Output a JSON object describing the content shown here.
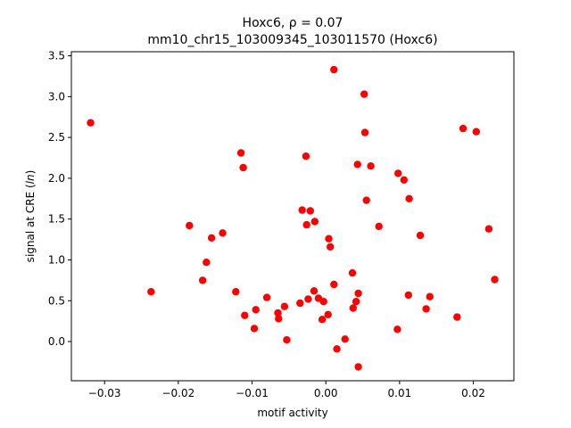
{
  "chart_data": {
    "type": "scatter",
    "title_line1": "Hoxc6, ρ = 0.07",
    "title_line2": "mm10_chr15_103009345_103011570 (Hoxc6)",
    "xlabel": "motif activity",
    "ylabel": "signal at CRE (ln)",
    "ylabel_prefix": "signal at CRE (",
    "ylabel_italic": "ln",
    "ylabel_suffix": ")",
    "xlim": [
      -0.0345,
      0.0255
    ],
    "ylim": [
      -0.48,
      3.55
    ],
    "xticks": [
      -0.03,
      -0.02,
      -0.01,
      0.0,
      0.01,
      0.02
    ],
    "xtick_labels": [
      "−0.03",
      "−0.02",
      "−0.01",
      "0.00",
      "0.01",
      "0.02"
    ],
    "yticks": [
      0.0,
      0.5,
      1.0,
      1.5,
      2.0,
      2.5,
      3.0,
      3.5
    ],
    "ytick_labels": [
      "0.0",
      "0.5",
      "1.0",
      "1.5",
      "2.0",
      "2.5",
      "3.0",
      "3.5"
    ],
    "grid": false,
    "marker_color": "#ff0000",
    "points": [
      {
        "x": -0.0319,
        "y": 2.68
      },
      {
        "x": -0.0237,
        "y": 0.61
      },
      {
        "x": -0.0185,
        "y": 1.42
      },
      {
        "x": -0.0167,
        "y": 0.75
      },
      {
        "x": -0.0162,
        "y": 0.97
      },
      {
        "x": -0.0155,
        "y": 1.27
      },
      {
        "x": -0.014,
        "y": 1.33
      },
      {
        "x": -0.0122,
        "y": 0.61
      },
      {
        "x": -0.0115,
        "y": 2.31
      },
      {
        "x": -0.0112,
        "y": 2.13
      },
      {
        "x": -0.011,
        "y": 0.32
      },
      {
        "x": -0.0097,
        "y": 0.16
      },
      {
        "x": -0.0095,
        "y": 0.39
      },
      {
        "x": -0.008,
        "y": 0.54
      },
      {
        "x": -0.0065,
        "y": 0.35
      },
      {
        "x": -0.0064,
        "y": 0.28
      },
      {
        "x": -0.0056,
        "y": 0.43
      },
      {
        "x": -0.0053,
        "y": 0.02
      },
      {
        "x": -0.0035,
        "y": 0.47
      },
      {
        "x": -0.0032,
        "y": 1.61
      },
      {
        "x": -0.0027,
        "y": 2.27
      },
      {
        "x": -0.0026,
        "y": 1.43
      },
      {
        "x": -0.0024,
        "y": 0.52
      },
      {
        "x": -0.0021,
        "y": 1.6
      },
      {
        "x": -0.0016,
        "y": 0.62
      },
      {
        "x": -0.0015,
        "y": 1.47
      },
      {
        "x": -0.001,
        "y": 0.53
      },
      {
        "x": -0.0005,
        "y": 0.27
      },
      {
        "x": -0.0003,
        "y": 0.49
      },
      {
        "x": 0.0003,
        "y": 0.33
      },
      {
        "x": 0.0004,
        "y": 1.26
      },
      {
        "x": 0.0006,
        "y": 1.16
      },
      {
        "x": 0.0011,
        "y": 3.33
      },
      {
        "x": 0.0011,
        "y": 0.7
      },
      {
        "x": 0.0015,
        "y": -0.09
      },
      {
        "x": 0.0026,
        "y": 0.03
      },
      {
        "x": 0.0036,
        "y": 0.84
      },
      {
        "x": 0.0037,
        "y": 0.41
      },
      {
        "x": 0.0041,
        "y": 0.49
      },
      {
        "x": 0.0043,
        "y": 2.17
      },
      {
        "x": 0.0044,
        "y": 0.59
      },
      {
        "x": 0.0044,
        "y": -0.31
      },
      {
        "x": 0.0052,
        "y": 3.03
      },
      {
        "x": 0.0053,
        "y": 2.56
      },
      {
        "x": 0.0055,
        "y": 1.73
      },
      {
        "x": 0.0061,
        "y": 2.15
      },
      {
        "x": 0.0072,
        "y": 1.41
      },
      {
        "x": 0.0097,
        "y": 0.15
      },
      {
        "x": 0.0098,
        "y": 2.06
      },
      {
        "x": 0.0106,
        "y": 1.98
      },
      {
        "x": 0.0112,
        "y": 0.57
      },
      {
        "x": 0.0113,
        "y": 1.75
      },
      {
        "x": 0.0128,
        "y": 1.3
      },
      {
        "x": 0.0136,
        "y": 0.4
      },
      {
        "x": 0.0141,
        "y": 0.55
      },
      {
        "x": 0.0178,
        "y": 0.3
      },
      {
        "x": 0.0186,
        "y": 2.61
      },
      {
        "x": 0.0204,
        "y": 2.57
      },
      {
        "x": 0.0221,
        "y": 1.38
      },
      {
        "x": 0.0229,
        "y": 0.76
      }
    ]
  }
}
